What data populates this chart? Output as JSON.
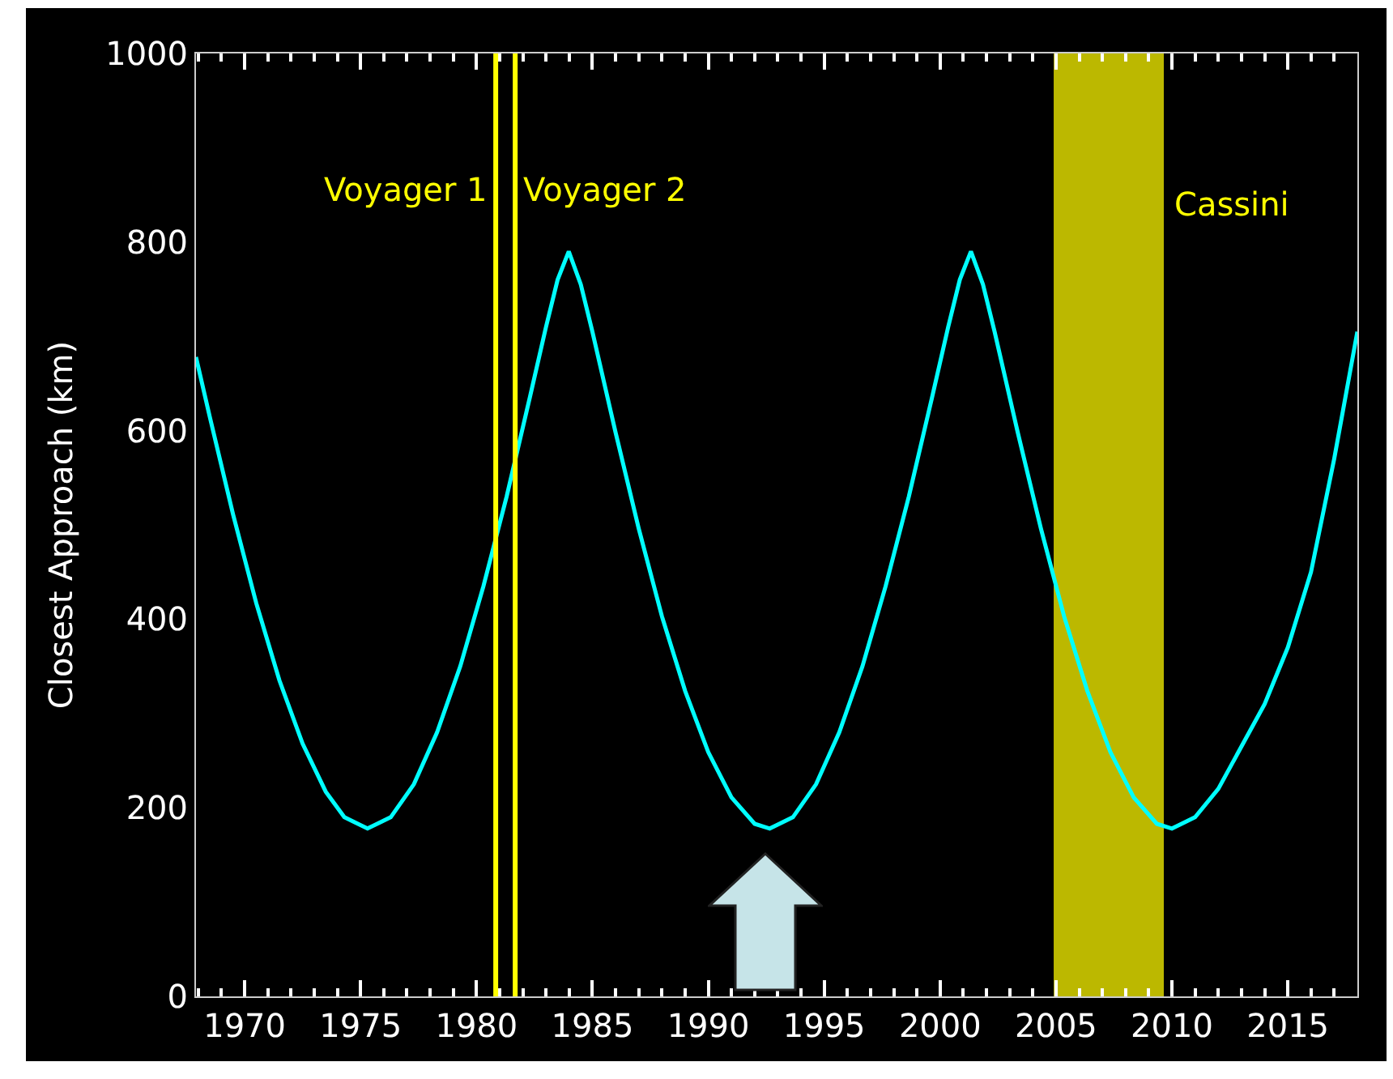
{
  "chart_data": {
    "type": "line",
    "ylabel": "Closest Approach (km)",
    "x": [
      1967.9,
      1968.5,
      1969.5,
      1970.5,
      1971.5,
      1972.5,
      1973.5,
      1974.3,
      1975.3,
      1976.3,
      1977.3,
      1978.3,
      1979.3,
      1980.3,
      1981.3,
      1982.3,
      1983.0,
      1983.5,
      1983.98,
      1984.5,
      1985,
      1986,
      1987,
      1988,
      1989,
      1990,
      1991,
      1992,
      1992.65,
      1993.65,
      1994.65,
      1995.65,
      1996.65,
      1997.65,
      1998.65,
      1999.65,
      2000.35,
      2000.85,
      2001.33,
      2001.85,
      2002.35,
      2003.35,
      2004.35,
      2005.35,
      2006.35,
      2007.35,
      2008.35,
      2009.35,
      2010.0,
      2011,
      2012,
      2013,
      2014,
      2015,
      2016,
      2017,
      2018
    ],
    "series": [
      {
        "color": "#00ffff",
        "values": [
          678,
          614,
          511,
          417,
          335,
          268,
          217,
          190,
          178,
          190,
          225,
          280,
          350,
          435,
          530,
          635,
          710,
          760,
          790,
          755,
          705,
          598,
          496,
          403,
          324,
          259,
          211,
          183,
          178,
          190,
          225,
          280,
          350,
          435,
          530,
          635,
          710,
          760,
          790,
          755,
          705,
          598,
          496,
          403,
          324,
          259,
          211,
          183,
          178,
          190,
          220,
          265,
          310,
          370,
          450,
          570,
          705
        ]
      }
    ],
    "xlim": [
      1967.9,
      2018
    ],
    "ylim": [
      0,
      1000
    ],
    "yticks": [
      0,
      200,
      400,
      600,
      800,
      1000
    ],
    "xticks": [
      {
        "value": 1968,
        "label": null
      },
      {
        "value": 1969,
        "label": null
      },
      1970,
      {
        "value": 1971,
        "label": null
      },
      {
        "value": 1972,
        "label": null
      },
      {
        "value": 1973,
        "label": null
      },
      {
        "value": 1974,
        "label": null
      },
      1975,
      {
        "value": 1976,
        "label": null
      },
      {
        "value": 1977,
        "label": null
      },
      {
        "value": 1978,
        "label": null
      },
      {
        "value": 1979,
        "label": null
      },
      1980,
      {
        "value": 1981,
        "label": null
      },
      {
        "value": 1982,
        "label": null
      },
      {
        "value": 1983,
        "label": null
      },
      {
        "value": 1984,
        "label": null
      },
      1985,
      {
        "value": 1986,
        "label": null
      },
      {
        "value": 1987,
        "label": null
      },
      {
        "value": 1988,
        "label": null
      },
      {
        "value": 1989,
        "label": null
      },
      1990,
      {
        "value": 1991,
        "label": null
      },
      {
        "value": 1992,
        "label": null
      },
      {
        "value": 1993,
        "label": null
      },
      {
        "value": 1994,
        "label": null
      },
      1995,
      {
        "value": 1996,
        "label": null
      },
      {
        "value": 1997,
        "label": null
      },
      {
        "value": 1998,
        "label": null
      },
      {
        "value": 1999,
        "label": null
      },
      2000,
      {
        "value": 2001,
        "label": null
      },
      {
        "value": 2002,
        "label": null
      },
      {
        "value": 2003,
        "label": null
      },
      {
        "value": 2004,
        "label": null
      },
      2005,
      {
        "value": 2006,
        "label": null
      },
      {
        "value": 2007,
        "label": null
      },
      {
        "value": 2008,
        "label": null
      },
      {
        "value": 2009,
        "label": null
      },
      2010,
      {
        "value": 2011,
        "label": null
      },
      {
        "value": 2012,
        "label": null
      },
      {
        "value": 2013,
        "label": null
      },
      {
        "value": 2014,
        "label": null
      },
      2015,
      {
        "value": 2016,
        "label": null
      },
      {
        "value": 2017,
        "label": null
      }
    ],
    "ref_lines": [
      {
        "axis": "x",
        "value": 1980.83,
        "label": "Voyager 1",
        "color": "#ffff00"
      },
      {
        "axis": "x",
        "value": 1981.67,
        "label": "Voyager 2",
        "color": "#ffff00"
      }
    ],
    "bands": [
      {
        "axis": "x",
        "from": 2004.9,
        "to": 2009.65,
        "label": "Cassini",
        "color": "#bcb800"
      }
    ],
    "grid": false,
    "marker": "none",
    "line_style": "solid"
  }
}
